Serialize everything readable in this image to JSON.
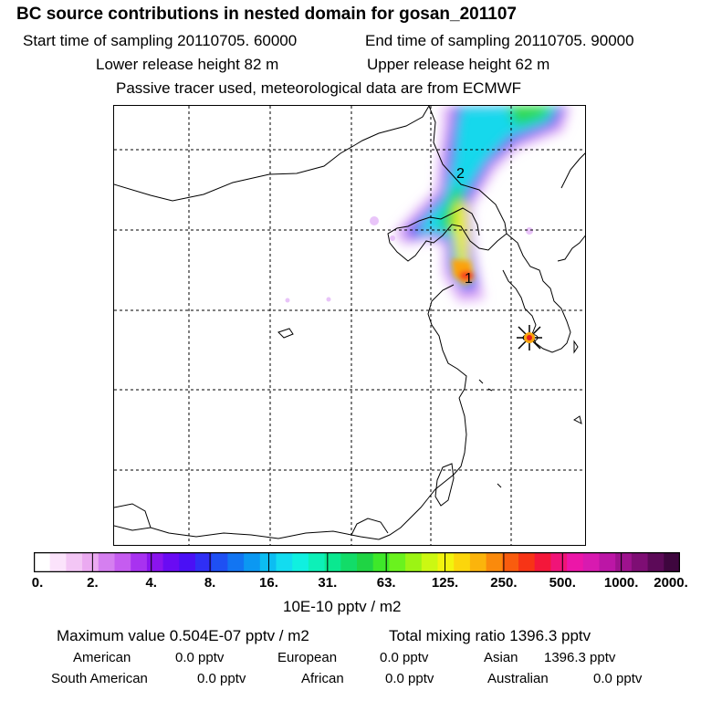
{
  "header": {
    "title": "BC  source contributions in nested domain for gosan_201107",
    "start_label": "Start time of sampling 20110705. 60000",
    "end_label": "End time of sampling 20110705. 90000",
    "lower_label": "Lower release height   82 m",
    "upper_label": "Upper release height   62 m",
    "tracer_note": "Passive tracer used, meteorological data are from ECMWF"
  },
  "map": {
    "plume_labels": [
      "2",
      "1"
    ],
    "receptor_marker": "asterisk-star-icon",
    "grid": "dashed"
  },
  "colorbar": {
    "tick_labels": [
      "0.",
      "2.",
      "4.",
      "8.",
      "16.",
      "31.",
      "63.",
      "125.",
      "250.",
      "500.",
      "1000.",
      "2000."
    ],
    "units": "10E-10 pptv / m2",
    "colors": [
      "#ffffff",
      "#fbe3fb",
      "#f3c6f5",
      "#ebaaf1",
      "#d57ff0",
      "#c55cf0",
      "#a832f0",
      "#8a14ee",
      "#6a0bf3",
      "#4a10f5",
      "#2f2ff5",
      "#1e50f3",
      "#1275f2",
      "#0b98f2",
      "#0cbdf2",
      "#13dcf0",
      "#10f0e0",
      "#0df0b8",
      "#0ae890",
      "#12dc68",
      "#1fd444",
      "#3ee82a",
      "#6af21e",
      "#9cf414",
      "#ccf812",
      "#f2f40e",
      "#fcd60c",
      "#fbb40c",
      "#fa8a0c",
      "#f95c0e",
      "#f73416",
      "#f4173a",
      "#f01478",
      "#ec16a8",
      "#d81ab0",
      "#bc16a6",
      "#9e128e",
      "#7e0e74",
      "#5c0a58",
      "#3e063e"
    ]
  },
  "stats": {
    "max_label": "Maximum value  0.504E-07 pptv / m2",
    "total_label": "Total mixing ratio      1396.3 pptv",
    "american_label": "American",
    "american_value": "0.0 pptv",
    "european_label": "European",
    "european_value": "0.0 pptv",
    "asian_label": "Asian",
    "asian_value": "1396.3 pptv",
    "south_american_label": "South American",
    "south_american_value": "0.0 pptv",
    "african_label": "African",
    "african_value": "0.0 pptv",
    "australian_label": "Australian",
    "australian_value": "0.0 pptv"
  }
}
